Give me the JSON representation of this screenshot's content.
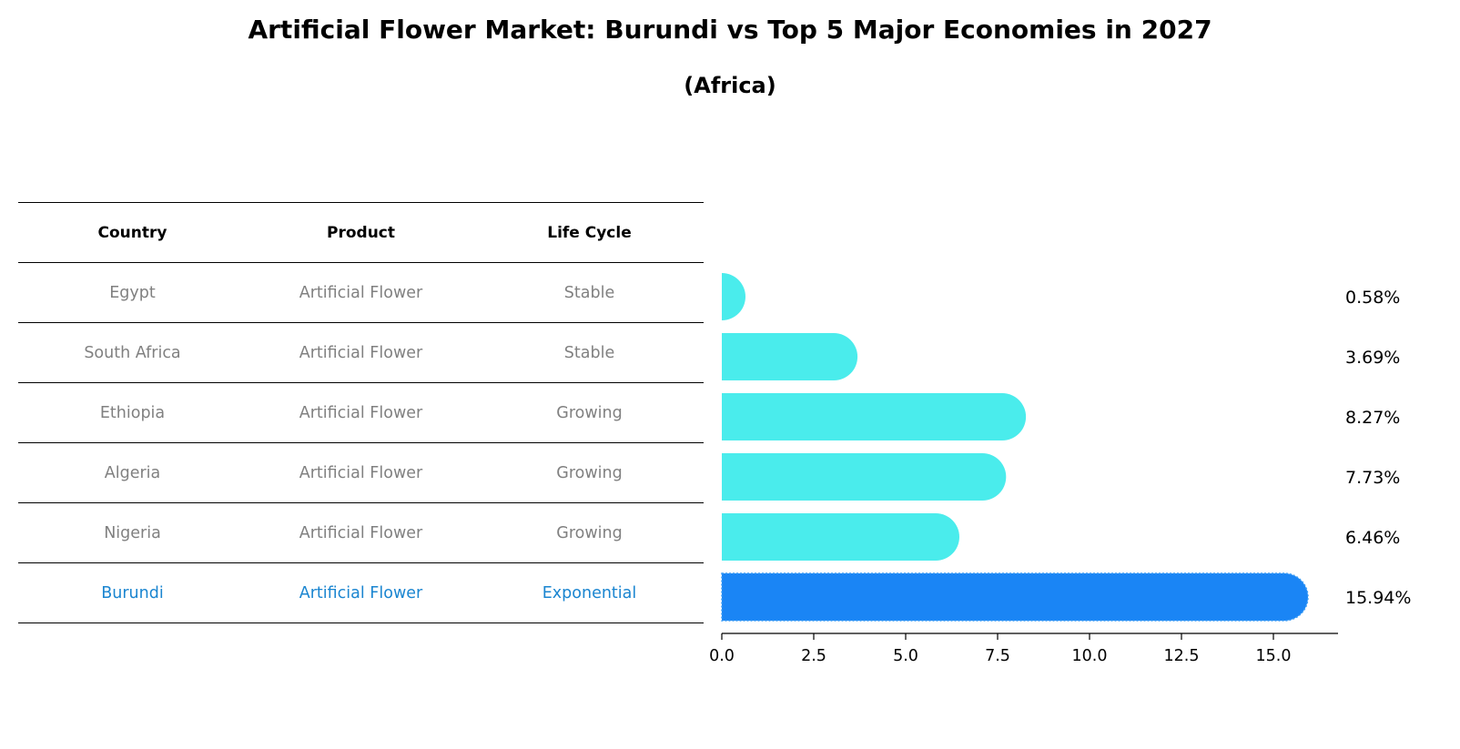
{
  "title": "Artificial Flower Market: Burundi vs Top 5 Major Economies in 2027",
  "subtitle": "(Africa)",
  "table": {
    "headers": [
      "Country",
      "Product",
      "Life Cycle"
    ],
    "rows": [
      [
        "Egypt",
        "Artificial Flower",
        "Stable"
      ],
      [
        "South Africa",
        "Artificial Flower",
        "Stable"
      ],
      [
        "Ethiopia",
        "Artificial Flower",
        "Growing"
      ],
      [
        "Algeria",
        "Artificial Flower",
        "Growing"
      ],
      [
        "Nigeria",
        "Artificial Flower",
        "Growing"
      ],
      [
        "Burundi",
        "Artificial Flower",
        "Exponential"
      ]
    ],
    "highlight_row": 5
  },
  "colors": {
    "bar": "#4aecec",
    "highlight": "#1a85f5",
    "highlight_text": "#1a85d0"
  },
  "chart_data": {
    "type": "bar",
    "orientation": "horizontal",
    "categories": [
      "Egypt",
      "South Africa",
      "Ethiopia",
      "Algeria",
      "Nigeria",
      "Burundi"
    ],
    "values": [
      0.58,
      3.69,
      8.27,
      7.73,
      6.46,
      15.94
    ],
    "value_labels": [
      "0.58%",
      "3.69%",
      "8.27%",
      "7.73%",
      "6.46%",
      "15.94%"
    ],
    "xlim": [
      0,
      16.8
    ],
    "xticks": [
      0.0,
      2.5,
      5.0,
      7.5,
      10.0,
      12.5,
      15.0
    ],
    "xtick_labels": [
      "0.0",
      "2.5",
      "5.0",
      "7.5",
      "10.0",
      "12.5",
      "15.0"
    ],
    "highlight_index": 5
  }
}
